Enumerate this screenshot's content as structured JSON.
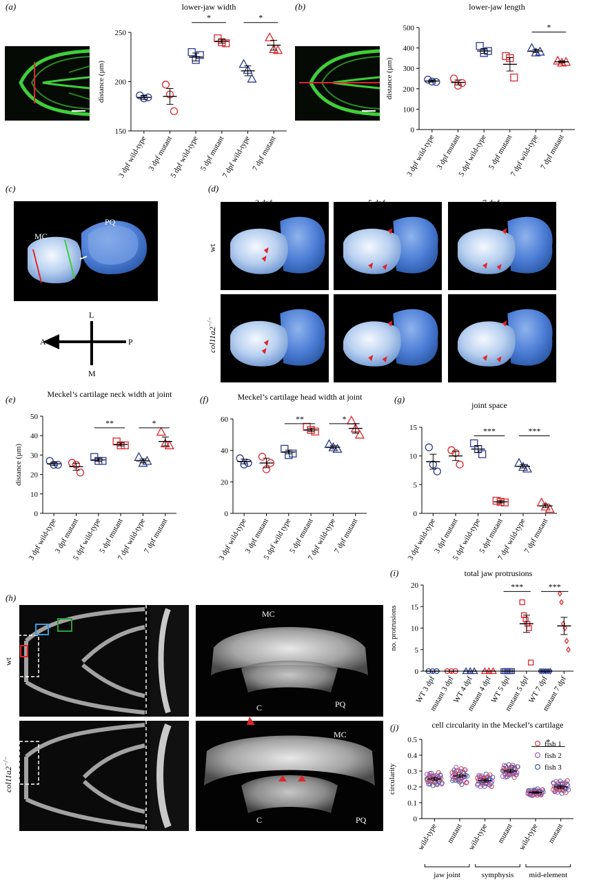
{
  "colors": {
    "wt": "#2b3990",
    "mut": "#e0262a",
    "fish1": "#d9414a",
    "fish2": "#a35bc4",
    "fish3": "#3e5fa8",
    "green": "#3fcf3a"
  },
  "panels": {
    "a": {
      "label": "(a)"
    },
    "b": {
      "label": "(b)"
    },
    "c": {
      "label": "(c)"
    },
    "d": {
      "label": "(d)"
    },
    "e": {
      "label": "(e)"
    },
    "f": {
      "label": "(f)"
    },
    "g": {
      "label": "(g)"
    },
    "h": {
      "label": "(h)"
    },
    "i": {
      "label": "(i)"
    },
    "j": {
      "label": "(j)"
    }
  },
  "panel_c": {
    "mc": "MC",
    "pq": "PQ",
    "axis_l": "L",
    "axis_m": "M",
    "axis_a": "A",
    "axis_p": "P"
  },
  "panel_d": {
    "col_3": "3 dpf",
    "col_5": "5 dpf",
    "col_7": "7 dpf",
    "row_wt": "wt",
    "row_mut": "col11a2",
    "row_mut_sup": "−/−"
  },
  "panel_h": {
    "row_wt": "wt",
    "row_mut": "col11a2",
    "row_mut_sup": "−/−",
    "mc_top": "MC",
    "c_top": "C",
    "pq_top": "PQ",
    "mc_bot": "MC",
    "c_bot": "C",
    "pq_bot": "PQ"
  },
  "chart_data": [
    {
      "id": "a",
      "type": "scatter",
      "title": "lower-jaw width",
      "ylabel": "distance (µm)",
      "ylim": [
        150,
        250
      ],
      "yticks": [
        150,
        200,
        250
      ],
      "categories": [
        "3 dpf wild-type",
        "3 dpf mutant",
        "5 dpf wild-type",
        "5 dpf mutant",
        "7 dpf wild-type",
        "7 dpf mutant"
      ],
      "groups": [
        {
          "marker": "circle",
          "color": "wt",
          "values": [
            186,
            183,
            184
          ],
          "mean": 184,
          "sem": 2
        },
        {
          "marker": "circle",
          "color": "mut",
          "values": [
            197,
            187,
            170
          ],
          "mean": 185,
          "sem": 8
        },
        {
          "marker": "square",
          "color": "wt",
          "values": [
            230,
            222,
            227
          ],
          "mean": 225,
          "sem": 4
        },
        {
          "marker": "square",
          "color": "mut",
          "values": [
            244,
            240,
            239
          ],
          "mean": 241,
          "sem": 2
        },
        {
          "marker": "triangle",
          "color": "wt",
          "values": [
            218,
            212,
            203
          ],
          "mean": 211,
          "sem": 5
        },
        {
          "marker": "triangle",
          "color": "mut",
          "values": [
            245,
            233,
            232
          ],
          "mean": 237,
          "sem": 5
        }
      ],
      "sig": [
        {
          "from": 2,
          "to": 3,
          "label": "*",
          "y": 260
        },
        {
          "from": 4,
          "to": 5,
          "label": "*",
          "y": 260
        }
      ]
    },
    {
      "id": "b",
      "type": "scatter",
      "title": "lower-jaw length",
      "ylabel": "distance (µm)",
      "ylim": [
        0,
        500
      ],
      "yticks": [
        0,
        100,
        200,
        300,
        400,
        500
      ],
      "categories": [
        "3 dpf wild-type",
        "3 dpf mutant",
        "5 dpf wild-type",
        "5 dpf mutant",
        "7 dpf wild-type",
        "7 dpf mutant"
      ],
      "groups": [
        {
          "marker": "circle",
          "color": "wt",
          "values": [
            245,
            235,
            233
          ],
          "mean": 238,
          "sem": 5
        },
        {
          "marker": "circle",
          "color": "mut",
          "values": [
            250,
            215,
            228
          ],
          "mean": 231,
          "sem": 12
        },
        {
          "marker": "square",
          "color": "wt",
          "values": [
            410,
            375,
            385
          ],
          "mean": 385,
          "sem": 12
        },
        {
          "marker": "square",
          "color": "mut",
          "values": [
            360,
            350,
            255
          ],
          "mean": 320,
          "sem": 33
        },
        {
          "marker": "triangle",
          "color": "wt",
          "values": [
            400,
            378,
            382
          ],
          "mean": 385,
          "sem": 8
        },
        {
          "marker": "triangle",
          "color": "mut",
          "values": [
            338,
            328,
            332
          ],
          "mean": 332,
          "sem": 4
        }
      ],
      "sig": [
        {
          "from": 4,
          "to": 5,
          "label": "*",
          "y": 478
        }
      ]
    },
    {
      "id": "e",
      "type": "scatter",
      "title": "Meckel’s cartilage neck width at joint",
      "ylabel": "distance (µm)",
      "ylim": [
        0,
        50
      ],
      "yticks": [
        0,
        10,
        20,
        30,
        40,
        50
      ],
      "categories": [
        "3 dpf wild-type",
        "3 dpf mutant",
        "5 dpf wild-type",
        "5 dpf mutant",
        "7 dpf wild-type",
        "7 dpf mutant"
      ],
      "groups": [
        {
          "marker": "circle",
          "color": "wt",
          "values": [
            27,
            25,
            25
          ],
          "mean": 25.5,
          "sem": 0.8
        },
        {
          "marker": "circle",
          "color": "mut",
          "values": [
            26,
            25,
            21
          ],
          "mean": 24,
          "sem": 1.8
        },
        {
          "marker": "square",
          "color": "wt",
          "values": [
            29,
            27,
            27
          ],
          "mean": 27.5,
          "sem": 0.8
        },
        {
          "marker": "square",
          "color": "mut",
          "values": [
            37,
            35,
            35
          ],
          "mean": 35.5,
          "sem": 0.8
        },
        {
          "marker": "triangle",
          "color": "wt",
          "values": [
            29,
            26,
            27
          ],
          "mean": 27,
          "sem": 1
        },
        {
          "marker": "triangle",
          "color": "mut",
          "values": [
            42,
            36,
            35
          ],
          "mean": 37,
          "sem": 2.3
        }
      ],
      "sig": [
        {
          "from": 2,
          "to": 3,
          "label": "**",
          "y": 44
        },
        {
          "from": 4,
          "to": 5,
          "label": "*",
          "y": 44
        }
      ]
    },
    {
      "id": "f",
      "type": "scatter",
      "title": "Meckel’s cartilage head width at joint",
      "ylabel": "",
      "ylim": [
        0,
        60
      ],
      "yticks": [
        0,
        20,
        40,
        60
      ],
      "categories": [
        "3 dpf wild-type",
        "3 dpf mutant",
        "5 dpf wild type",
        "5 dpf mutant",
        "7 dpf wild-type",
        "7 dpf mutant"
      ],
      "groups": [
        {
          "marker": "circle",
          "color": "wt",
          "values": [
            35,
            31,
            32
          ],
          "mean": 33,
          "sem": 1.5
        },
        {
          "marker": "circle",
          "color": "mut",
          "values": [
            36,
            28,
            32
          ],
          "mean": 32,
          "sem": 3
        },
        {
          "marker": "square",
          "color": "wt",
          "values": [
            41,
            37,
            38
          ],
          "mean": 39,
          "sem": 1.2
        },
        {
          "marker": "square",
          "color": "mut",
          "values": [
            55,
            53,
            52
          ],
          "mean": 53,
          "sem": 1
        },
        {
          "marker": "triangle",
          "color": "wt",
          "values": [
            44,
            42,
            41
          ],
          "mean": 42,
          "sem": 1
        },
        {
          "marker": "triangle",
          "color": "mut",
          "values": [
            59,
            54,
            50
          ],
          "mean": 54,
          "sem": 3
        }
      ],
      "sig": [
        {
          "from": 2,
          "to": 3,
          "label": "**",
          "y": 57
        },
        {
          "from": 4,
          "to": 5,
          "label": "*",
          "y": 57
        }
      ]
    },
    {
      "id": "g",
      "type": "scatter",
      "title": "joint space",
      "ylabel": "",
      "ylim": [
        0,
        15
      ],
      "yticks": [
        0,
        5,
        10,
        15
      ],
      "categories": [
        "3 dpf wild-type",
        "3 dpf mutant",
        "5 dpf wild-type",
        "5 dpf mutant",
        "7 dpf wild-type",
        "7 dpf mutant"
      ],
      "groups": [
        {
          "marker": "circle",
          "color": "wt",
          "values": [
            11.5,
            8.5,
            7.3
          ],
          "mean": 9,
          "sem": 1.3
        },
        {
          "marker": "circle",
          "color": "mut",
          "values": [
            11,
            10.5,
            8.5
          ],
          "mean": 10,
          "sem": 0.8
        },
        {
          "marker": "square",
          "color": "wt",
          "values": [
            12.2,
            11.2,
            10.3
          ],
          "mean": 11.2,
          "sem": 0.6
        },
        {
          "marker": "square",
          "color": "mut",
          "values": [
            2.2,
            2,
            1.9
          ],
          "mean": 2,
          "sem": 0.2
        },
        {
          "marker": "triangle",
          "color": "wt",
          "values": [
            8.8,
            8.1,
            7.8
          ],
          "mean": 8.2,
          "sem": 0.3
        },
        {
          "marker": "triangle",
          "color": "mut",
          "values": [
            1.9,
            1.2,
            0.8
          ],
          "mean": 1.3,
          "sem": 0.3
        }
      ],
      "sig": [
        {
          "from": 2,
          "to": 3,
          "label": "***",
          "y": 13.5
        },
        {
          "from": 4,
          "to": 5,
          "label": "***",
          "y": 13.5
        }
      ]
    },
    {
      "id": "i",
      "type": "scatter",
      "title": "total jaw protrusions",
      "ylabel": "no. protrusions",
      "ylim": [
        0,
        20
      ],
      "yticks": [
        0,
        5,
        10,
        15,
        20
      ],
      "categories": [
        "WT 3 dpf",
        "mutant 3 dpf",
        "WT 4 dpf",
        "mutant 4 dpf",
        "WT 5 dpf",
        "mutant 5 dpf",
        "WT 7 dpf",
        "mutant 7 dpf"
      ],
      "groups": [
        {
          "marker": "circle",
          "color": "wt",
          "values": [
            0,
            0,
            0
          ],
          "mean": 0,
          "sem": 0
        },
        {
          "marker": "circle",
          "color": "mut",
          "values": [
            0,
            0,
            0
          ],
          "mean": 0,
          "sem": 0
        },
        {
          "marker": "triangle",
          "color": "wt",
          "values": [
            0,
            0,
            0
          ],
          "mean": 0,
          "sem": 0
        },
        {
          "marker": "triangle",
          "color": "mut",
          "values": [
            0,
            0,
            0
          ],
          "mean": 0,
          "sem": 0
        },
        {
          "marker": "square",
          "color": "wt",
          "values": [
            0,
            0,
            0,
            0,
            0,
            0
          ],
          "mean": 0,
          "sem": 0
        },
        {
          "marker": "square",
          "color": "mut",
          "values": [
            16,
            13,
            12,
            11,
            10,
            2
          ],
          "mean": 11,
          "sem": 2
        },
        {
          "marker": "diamond",
          "color": "wt",
          "values": [
            0,
            0,
            0,
            0,
            0,
            0,
            0
          ],
          "mean": 0,
          "sem": 0
        },
        {
          "marker": "diamond",
          "color": "mut",
          "values": [
            18,
            16,
            11,
            10,
            7,
            5
          ],
          "mean": 10.5,
          "sem": 2
        }
      ],
      "sig": [
        {
          "from": 4,
          "to": 5,
          "label": "***",
          "y": 18.5
        },
        {
          "from": 6,
          "to": 7,
          "label": "***",
          "y": 18.5
        }
      ]
    },
    {
      "id": "j",
      "type": "scatter",
      "title": "cell circularity in the Meckel’s cartilage",
      "ylabel": "circularity",
      "ylim": [
        0,
        0.5
      ],
      "yticks": [
        0,
        0.1,
        0.2,
        0.3,
        0.4,
        0.5
      ],
      "categories": [
        "wild-type",
        "mutant",
        "wild-type",
        "mutant",
        "wild-type",
        "mutant"
      ],
      "brackets": [
        "jaw joint",
        "symphysis",
        "mid-element"
      ],
      "legend": [
        "fish 1",
        "fish 2",
        "fish 3"
      ],
      "groups": [
        {
          "mean": 0.25,
          "sem": 0.01,
          "spread": 0.05
        },
        {
          "mean": 0.27,
          "sem": 0.01,
          "spread": 0.06
        },
        {
          "mean": 0.24,
          "sem": 0.01,
          "spread": 0.045
        },
        {
          "mean": 0.3,
          "sem": 0.01,
          "spread": 0.05
        },
        {
          "mean": 0.165,
          "sem": 0.005,
          "spread": 0.025
        },
        {
          "mean": 0.2,
          "sem": 0.01,
          "spread": 0.045
        }
      ],
      "sig": [
        {
          "from": 4,
          "to": 5,
          "label": "*",
          "y": 0.455
        }
      ]
    }
  ]
}
